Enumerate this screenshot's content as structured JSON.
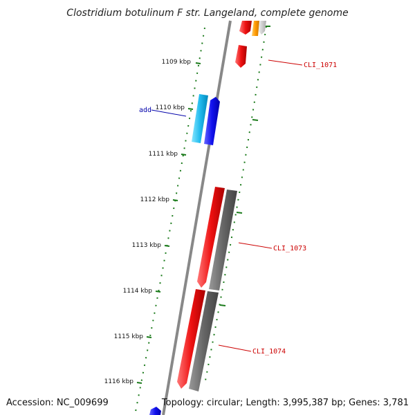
{
  "title": "Clostridium botulinum F str. Langeland, complete genome",
  "footer": {
    "accession": "Accession: NC_009699",
    "summary": "Topology: circular; Length: 3,995,387 bp; Genes: 3,781"
  },
  "ticks": [
    {
      "label": "1109 kbp"
    },
    {
      "label": "1110 kbp"
    },
    {
      "label": "1111 kbp"
    },
    {
      "label": "1112 kbp"
    },
    {
      "label": "1113 kbp"
    },
    {
      "label": "1114 kbp"
    },
    {
      "label": "1115 kbp"
    },
    {
      "label": "1116 kbp"
    }
  ],
  "gene_labels": [
    {
      "text": "CLI_1071",
      "color": "#cc0000"
    },
    {
      "text": "CLI_1073",
      "color": "#cc0000"
    },
    {
      "text": "CLI_1074",
      "color": "#cc0000"
    },
    {
      "text": "add",
      "color": "#0000aa"
    }
  ],
  "colors": {
    "cds_red": "#ee1111",
    "cds_gray": "#666666",
    "cds_blue": "#1111ee",
    "cds_cyan": "#22bbee",
    "cds_orange": "#ff9900",
    "tick_green": "#1a7a1a",
    "backbone": "#888888"
  }
}
